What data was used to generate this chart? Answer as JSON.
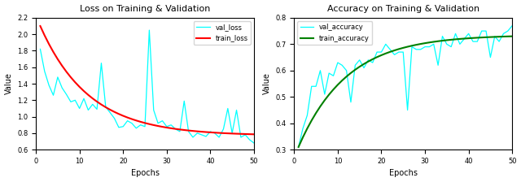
{
  "loss_title": "Loss on Training & Validation",
  "acc_title": "Accuracy on Training & Validation",
  "xlabel": "Epochs",
  "ylabel": "Value",
  "epochs": 50,
  "train_loss_color": "red",
  "val_loss_color": "cyan",
  "train_acc_color": "green",
  "val_acc_color": "cyan",
  "loss_ylim": [
    0.6,
    2.2
  ],
  "acc_ylim": [
    0.3,
    0.8
  ],
  "loss_legend": [
    "train_loss",
    "val_loss"
  ],
  "acc_legend": [
    "train_accuracy",
    "val_accuracy"
  ],
  "train_loss": [
    2.1,
    1.72,
    1.52,
    1.4,
    1.32,
    1.25,
    1.19,
    1.14,
    1.1,
    1.06,
    1.03,
    1.0,
    0.97,
    0.95,
    0.93,
    0.91,
    0.89,
    0.87,
    0.86,
    0.84,
    0.83,
    0.82,
    0.81,
    0.8,
    0.79,
    0.78,
    0.77,
    0.77,
    0.76,
    0.75,
    0.75,
    0.74,
    0.74,
    0.73,
    0.73,
    0.82,
    0.82,
    0.81,
    0.81,
    0.8,
    0.8,
    0.79,
    0.79,
    0.79,
    0.78,
    0.78,
    0.78,
    0.77,
    0.77,
    0.77
  ],
  "val_loss": [
    1.82,
    1.55,
    1.38,
    1.26,
    1.48,
    1.35,
    1.27,
    1.18,
    1.2,
    1.1,
    1.22,
    1.08,
    1.15,
    1.09,
    1.65,
    1.12,
    1.05,
    0.98,
    0.87,
    0.88,
    0.95,
    0.92,
    0.86,
    0.9,
    0.88,
    2.05,
    1.08,
    0.92,
    0.95,
    0.88,
    0.9,
    0.85,
    0.82,
    1.19,
    0.82,
    0.75,
    0.8,
    0.78,
    0.76,
    0.82,
    0.8,
    0.75,
    0.85,
    1.1,
    0.8,
    1.08,
    0.75,
    0.78,
    0.72,
    0.68
  ],
  "train_acc": [
    0.31,
    0.39,
    0.44,
    0.49,
    0.52,
    0.55,
    0.57,
    0.59,
    0.61,
    0.62,
    0.63,
    0.64,
    0.65,
    0.66,
    0.67,
    0.67,
    0.68,
    0.69,
    0.69,
    0.7,
    0.7,
    0.71,
    0.71,
    0.71,
    0.72,
    0.72,
    0.72,
    0.72,
    0.73,
    0.73,
    0.73,
    0.73,
    0.73,
    0.73,
    0.74,
    0.74,
    0.74,
    0.74,
    0.74,
    0.74,
    0.74,
    0.74,
    0.74,
    0.74,
    0.74,
    0.74,
    0.74,
    0.74,
    0.73,
    0.73
  ],
  "val_acc": [
    0.31,
    0.38,
    0.43,
    0.54,
    0.54,
    0.6,
    0.51,
    0.59,
    0.58,
    0.63,
    0.62,
    0.6,
    0.48,
    0.62,
    0.64,
    0.61,
    0.64,
    0.63,
    0.67,
    0.67,
    0.7,
    0.68,
    0.66,
    0.67,
    0.67,
    0.45,
    0.69,
    0.68,
    0.68,
    0.69,
    0.69,
    0.7,
    0.62,
    0.73,
    0.7,
    0.69,
    0.74,
    0.7,
    0.72,
    0.74,
    0.71,
    0.71,
    0.75,
    0.75,
    0.65,
    0.73,
    0.71,
    0.74,
    0.75,
    0.77
  ]
}
